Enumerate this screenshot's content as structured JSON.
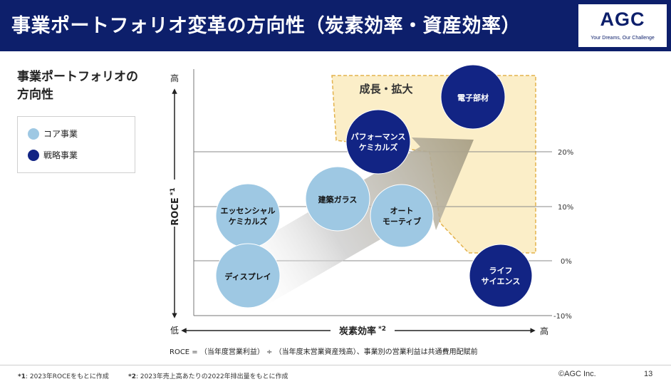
{
  "header": {
    "title": "事業ポートフォリオ変革の方向性（炭素効率・資産効率）",
    "logo": "AGC",
    "tagline": "Your Dreams, Our Challenge"
  },
  "sidebar": {
    "title_line1": "事業ポートフォリオの",
    "title_line2": "方向性",
    "legend": [
      {
        "label": "コア事業",
        "color": "#9ec8e3"
      },
      {
        "label": "戦略事業",
        "color": "#122484"
      }
    ]
  },
  "chart_data": {
    "type": "bubble-matrix",
    "title": "事業ポートフォリオの方向性",
    "ylabel": "ROCE",
    "ylabel_note": "*1",
    "xlabel": "炭素効率",
    "xlabel_note": "*2",
    "y_high": "高",
    "y_low": "低",
    "x_high": "高",
    "y_gridlines": [
      "20%",
      "10%",
      "0%",
      "-10%"
    ],
    "growth_zone_label": "成長・拡大",
    "businesses": [
      {
        "name": "電子部材",
        "category": "戦略事業"
      },
      {
        "name": "パフォーマンス\nケミカルズ",
        "category": "戦略事業"
      },
      {
        "name": "建築ガラス",
        "category": "コア事業"
      },
      {
        "name": "オート\nモーティブ",
        "category": "コア事業"
      },
      {
        "name": "エッセンシャル\nケミカルズ",
        "category": "コア事業"
      },
      {
        "name": "ディスプレイ",
        "category": "コア事業"
      },
      {
        "name": "ライフ\nサイエンス",
        "category": "戦略事業"
      }
    ],
    "formula": "ROCE = （当年度営業利益） ÷ （当年度末営業資産残高）、事業別の営業利益は共通費用配賦前"
  },
  "footer": {
    "note1_mark": "*1",
    "note1": ": 2023年ROCEをもとに作成",
    "note2_mark": "*2",
    "note2": ": 2023年売上高あたりの2022年排出量をもとに作成",
    "copyright": "©AGC Inc.",
    "page": "13"
  }
}
